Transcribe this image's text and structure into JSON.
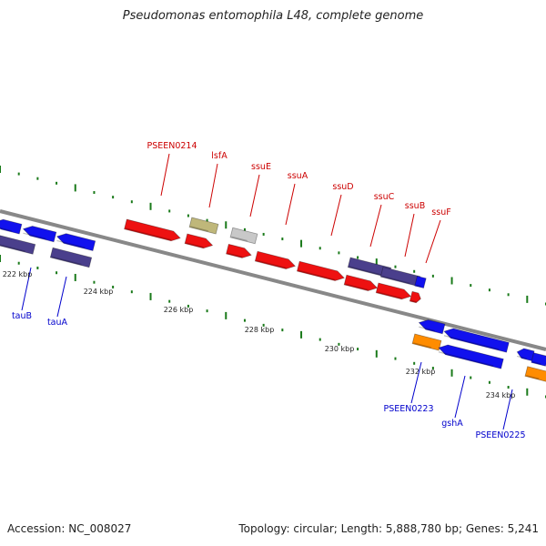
{
  "title": "Pseudomonas entomophila L48, complete genome",
  "footer": {
    "accession": "Accession: NC_008027",
    "summary": "Topology: circular; Length: 5,888,780 bp; Genes: 5,241"
  },
  "colors": {
    "backbone": "#888888",
    "tick": "#1a7a1a",
    "forward_label": "#cc0000",
    "reverse_label": "#0000cc",
    "red": "#ee1111",
    "blue": "#1111ee",
    "navy": "#4a3f8c",
    "olive": "#bfb77a",
    "gray": "#c8c8c8",
    "orange": "#ff8c00"
  },
  "kbp_labels": [
    "222 kbp",
    "224 kbp",
    "226 kbp",
    "228 kbp",
    "230 kbp",
    "232 kbp",
    "234 kbp"
  ],
  "forward_labels": [
    "PSEEN0214",
    "lsfA",
    "ssuE",
    "ssuA",
    "ssuD",
    "ssuC",
    "ssuB",
    "ssuF"
  ],
  "reverse_labels": [
    "tauB",
    "tauA",
    "PSEEN0223",
    "gshA",
    "PSEEN0225"
  ]
}
